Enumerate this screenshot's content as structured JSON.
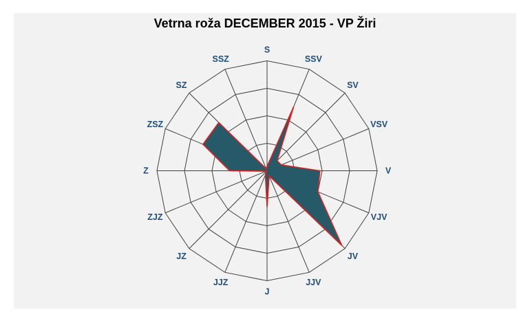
{
  "header": {
    "title": "Vetrna roža DECEMBER 2015 - VP Žiri"
  },
  "chart_data": {
    "type": "radar",
    "subtype": "wind-rose",
    "title": "Vetrna roža DECEMBER 2015 - VP Žiri",
    "categories": [
      "S",
      "SSV",
      "SV",
      "VSV",
      "V",
      "VJV",
      "JV",
      "JJV",
      "J",
      "JJZ",
      "JZ",
      "ZJZ",
      "Z",
      "ZSZ",
      "SZ",
      "SSZ"
    ],
    "values": [
      0.04,
      0.63,
      0.13,
      0.14,
      0.48,
      0.5,
      0.96,
      0.05,
      0.33,
      0.04,
      0.01,
      0.01,
      0.34,
      0.63,
      0.62,
      0.02
    ],
    "values_unit": "fraction of outer ring radius (no radial tick labels visible in chart)",
    "direction_order": "clockwise from top; Slovenian compass names (S=N, V=E, J=S, Z=W)",
    "grid": {
      "rings": 4,
      "ring_fractions": [
        0.25,
        0.5,
        0.75,
        1.0
      ],
      "spokes": 16,
      "ring_shape": "polygon"
    },
    "legend": "none",
    "colors": {
      "series_fill": "#275a68",
      "series_outline": "#d92121",
      "grid": "#404040",
      "direction_labels": "#1f4e79",
      "panel_background": "#f2f2f2",
      "page_background": "#ffffff",
      "title_text": "#000000"
    }
  }
}
